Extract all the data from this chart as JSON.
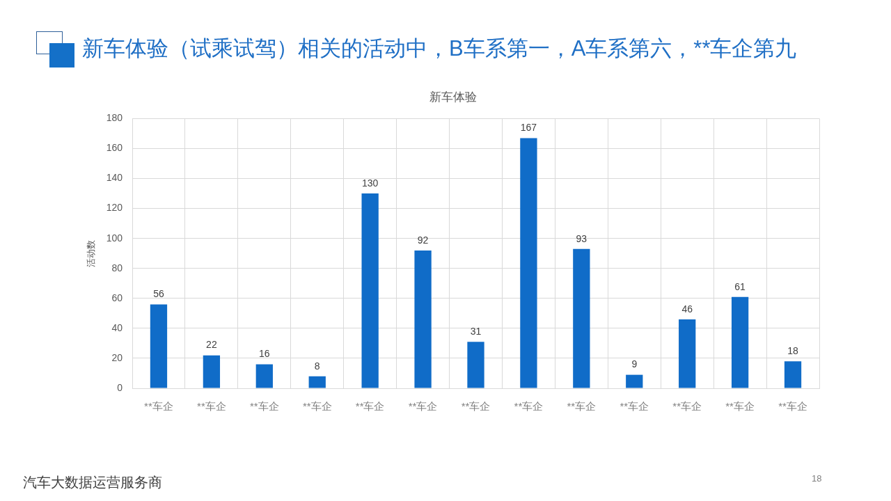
{
  "chart_data": {
    "type": "bar",
    "title": "新车体验（试乘试驾）相关的活动中，B车系第一，A车系第六，**车企第九",
    "subtitle": "新车体验",
    "ylabel": "活动数",
    "categories": [
      "**车企",
      "**车企",
      "**车企",
      "**车企",
      "**车企",
      "**车企",
      "**车企",
      "**车企",
      "**车企",
      "**车企",
      "**车企",
      "**车企",
      "**车企"
    ],
    "values": [
      56,
      22,
      16,
      8,
      130,
      92,
      31,
      167,
      93,
      9,
      46,
      61,
      18
    ],
    "color": "#106cc8",
    "ylim": [
      0,
      180
    ],
    "yticks": [
      0,
      20,
      40,
      60,
      80,
      100,
      120,
      140,
      160,
      180
    ],
    "grid": true,
    "data_labels": true,
    "annotations": [
      "汽车大数据运营服务商",
      "18"
    ]
  }
}
